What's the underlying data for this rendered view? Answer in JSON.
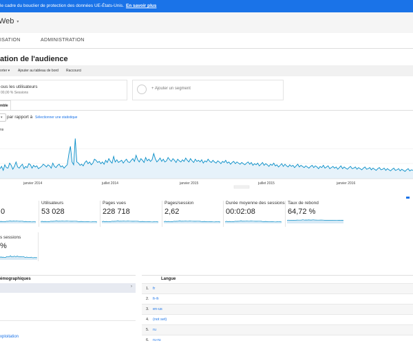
{
  "banner": {
    "text": "le cadre du bouclier de protection des données UE-États-Unis.",
    "link": "En savoir plus"
  },
  "header": {
    "view_name": "Web",
    "caret": "▾"
  },
  "nav": {
    "tabs": [
      "ISATION",
      "ADMINISTRATION"
    ]
  },
  "page_title": "ation de l'audience",
  "toolbar": {
    "items": [
      "orter ▾",
      "Ajouter au tableau de bord",
      "Raccourci"
    ]
  },
  "segments": {
    "current_line1": "ous les utilisateurs",
    "current_line2": "00,00 % Sessions",
    "add_label": "+ Ajouter un segment"
  },
  "overview_tab": "mble",
  "compare": {
    "caret": "▾",
    "label": "par rapport à",
    "select_stat": "Sélectionner une statistique"
  },
  "chart_data": {
    "type": "line",
    "series_label": "ns",
    "x_labels": [
      "janvier 2014",
      "juillet 2014",
      "janvier 2015",
      "juillet 2015",
      "janvier 2016"
    ],
    "color": "#058dc7",
    "fill": "#e6f2fa",
    "series": [
      {
        "values": [
          18,
          22,
          15,
          25,
          20,
          19,
          28,
          24,
          17,
          22,
          30,
          21,
          19,
          23,
          26,
          18,
          22,
          20,
          27,
          25,
          19,
          24,
          21,
          23,
          18,
          20,
          22,
          26,
          24,
          21,
          25,
          23,
          19,
          28,
          22,
          20,
          24,
          26,
          21,
          23,
          19,
          22,
          25,
          44,
          58,
          30,
          25,
          72,
          30,
          28,
          24,
          26,
          23,
          29,
          32,
          27,
          30,
          25,
          28,
          35,
          33,
          29,
          31,
          27,
          30,
          26,
          33,
          29,
          36,
          31,
          28,
          40,
          30,
          34,
          29,
          31,
          33,
          28,
          32,
          35,
          30,
          29,
          33,
          36,
          31,
          42,
          34,
          30,
          36,
          33,
          29,
          38,
          32,
          35,
          31,
          34,
          45,
          36,
          30,
          33,
          37,
          31,
          35,
          30,
          32,
          38,
          34,
          31,
          36,
          33,
          29,
          35,
          32,
          30,
          34,
          31,
          37,
          33,
          30,
          36,
          32,
          29,
          35,
          31,
          33,
          30,
          34,
          28,
          32,
          30,
          35,
          31,
          29,
          33,
          30,
          28,
          32,
          30,
          27,
          31,
          29,
          33,
          28,
          30,
          26,
          29,
          31,
          27,
          30,
          28,
          26,
          29,
          27,
          25,
          28,
          30,
          26,
          29,
          24,
          27,
          25,
          28,
          23,
          26,
          29,
          24,
          27,
          25,
          22,
          26,
          24,
          28,
          23,
          25,
          21,
          24,
          27,
          22,
          26,
          23,
          21,
          25,
          22,
          24,
          20,
          23,
          26,
          21,
          24,
          22,
          20,
          23,
          21,
          19,
          22,
          24,
          20,
          23,
          21,
          18,
          22,
          20,
          24,
          19,
          21,
          23,
          18,
          20,
          22,
          19,
          21,
          17,
          20,
          23,
          18,
          21,
          19,
          17,
          20,
          22,
          18,
          19,
          21,
          17,
          20,
          18,
          16,
          19,
          21,
          17,
          18,
          20,
          16,
          19,
          17,
          15,
          18,
          20,
          16,
          17,
          19,
          15,
          18,
          16,
          14,
          17,
          19,
          15,
          16,
          18,
          14,
          17,
          15,
          13,
          16,
          18,
          14,
          16,
          15
        ]
      }
    ],
    "ylim": [
      0,
      80
    ]
  },
  "metrics": [
    {
      "label": "",
      "value": "0"
    },
    {
      "label": "Utilisateurs",
      "value": "53 028"
    },
    {
      "label": "Pages vues",
      "value": "228 718"
    },
    {
      "label": "Pages/session",
      "value": "2,62"
    },
    {
      "label": "Durée moyenne des sessions",
      "value": "00:02:08"
    },
    {
      "label": "Taux de rebond",
      "value": "64,72 %"
    }
  ],
  "metric2": {
    "label": "s sessions",
    "value": "%"
  },
  "demographics": {
    "title": "émographiques",
    "arrow": "›",
    "link": "xploitation"
  },
  "languages": {
    "title": "Langue",
    "rows": [
      {
        "num": "1.",
        "name": "fr"
      },
      {
        "num": "2.",
        "name": "fr-fr"
      },
      {
        "num": "3.",
        "name": "en-us"
      },
      {
        "num": "4.",
        "name": "(not set)"
      },
      {
        "num": "5.",
        "name": "ru"
      },
      {
        "num": "6.",
        "name": "ru-ru"
      }
    ]
  }
}
